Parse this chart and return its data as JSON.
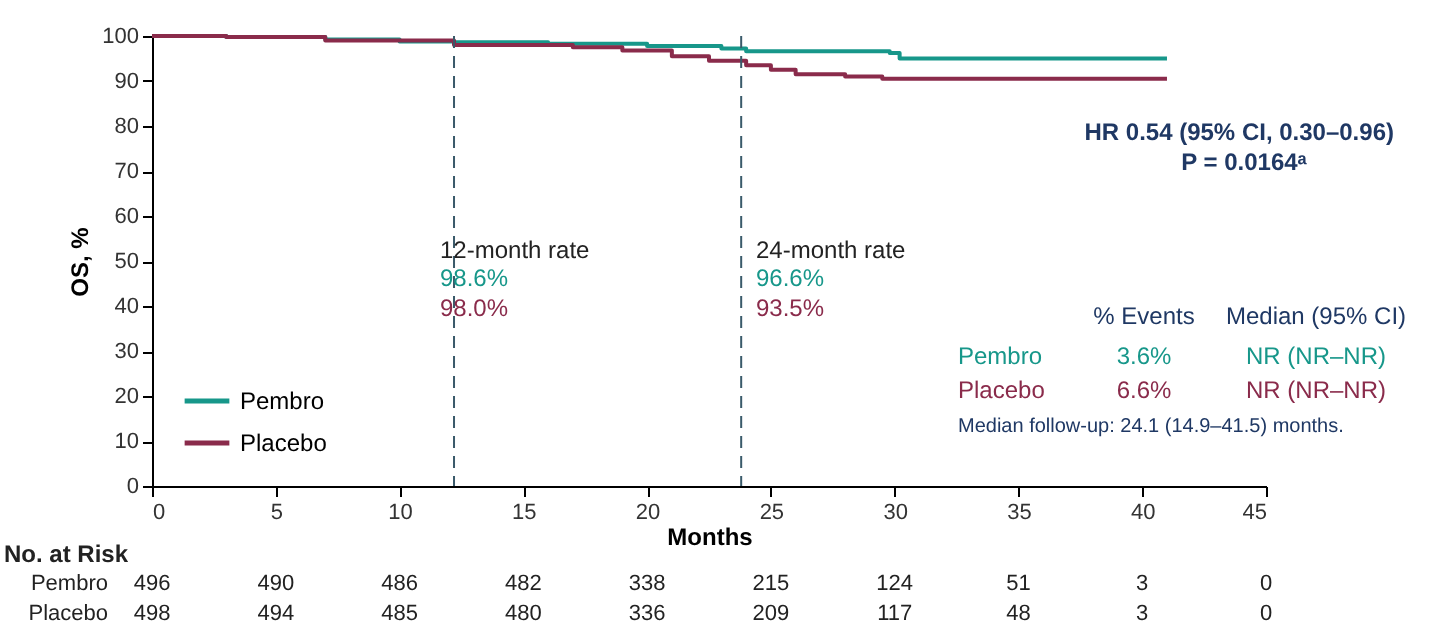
{
  "chart_data": {
    "type": "step",
    "xlabel": "Months",
    "ylabel": "OS, %",
    "xlim": [
      0,
      45
    ],
    "xticks": [
      0,
      5,
      10,
      15,
      20,
      25,
      30,
      35,
      40,
      45
    ],
    "ylim": [
      0,
      100
    ],
    "yticks": [
      0,
      10,
      20,
      30,
      40,
      50,
      60,
      70,
      80,
      90,
      100
    ],
    "grid": false,
    "legend": "bottom left",
    "line_style": "solid",
    "series": [
      {
        "name": "Pembro",
        "color": "#17978a",
        "x": [
          0,
          3,
          7,
          10,
          12.2,
          16,
          20,
          23,
          24,
          26,
          29.8,
          30.2,
          41
        ],
        "values": [
          100,
          99.8,
          99.2,
          98.8,
          98.6,
          98.3,
          97.8,
          97.2,
          96.6,
          96.6,
          96.2,
          95,
          95
        ]
      },
      {
        "name": "Placebo",
        "color": "#8a2b4b",
        "x": [
          0,
          3,
          7,
          12.2,
          17,
          19,
          21,
          22.5,
          24,
          25,
          26,
          28,
          29.5,
          41
        ],
        "values": [
          100,
          99.8,
          99,
          98,
          97.5,
          96.8,
          95.5,
          94.5,
          93.5,
          92.5,
          91.5,
          91,
          90.5,
          90.5
        ]
      }
    ],
    "ref_lines": [
      {
        "axis": "x",
        "value": 12.2,
        "color": "#3a5a6a",
        "line_style": "dashed"
      },
      {
        "axis": "x",
        "value": 23.8,
        "color": "#3a5a6a",
        "line_style": "dashed"
      }
    ],
    "annotations": [
      "12-month rate",
      "98.6%",
      "98.0%",
      "24-month rate",
      "96.6%",
      "93.5%",
      "HR 0.54 (95% CI, 0.30–0.96)",
      "P = 0.0164ᵃ",
      "% Events",
      "Median (95% CI)",
      "Pembro",
      "3.6%",
      "NR (NR–NR)",
      "Placebo",
      "6.6%",
      "NR (NR–NR)",
      "Median follow-up: 24.1 (14.9–41.5) months.",
      "No. at Risk",
      "Pembro",
      "496",
      "490",
      "486",
      "482",
      "338",
      "215",
      "124",
      "51",
      "3",
      "0",
      "Placebo",
      "498",
      "494",
      "485",
      "480",
      "336",
      "209",
      "117",
      "48",
      "3",
      "0"
    ]
  }
}
